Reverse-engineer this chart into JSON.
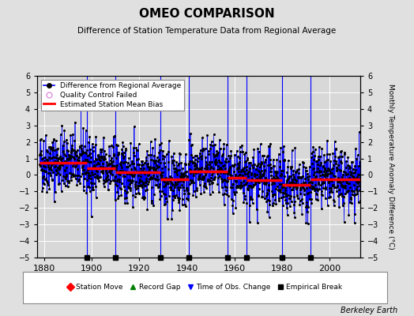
{
  "title": "OMEO COMPARISON",
  "subtitle": "Difference of Station Temperature Data from Regional Average",
  "ylabel": "Monthly Temperature Anomaly Difference (°C)",
  "xlim": [
    1877,
    2013
  ],
  "ylim": [
    -5,
    6
  ],
  "yticks": [
    -5,
    -4,
    -3,
    -2,
    -1,
    0,
    1,
    2,
    3,
    4,
    5,
    6
  ],
  "xticks": [
    1880,
    1900,
    1920,
    1940,
    1960,
    1980,
    2000
  ],
  "x_start": 1878,
  "n_months": 1632,
  "seed": 42,
  "bias_segments": [
    {
      "x_start": 1878,
      "x_end": 1898,
      "bias": 0.75
    },
    {
      "x_start": 1898,
      "x_end": 1910,
      "bias": 0.4
    },
    {
      "x_start": 1910,
      "x_end": 1929,
      "bias": 0.15
    },
    {
      "x_start": 1929,
      "x_end": 1941,
      "bias": -0.25
    },
    {
      "x_start": 1941,
      "x_end": 1957,
      "bias": 0.2
    },
    {
      "x_start": 1957,
      "x_end": 1965,
      "bias": -0.15
    },
    {
      "x_start": 1965,
      "x_end": 1980,
      "bias": -0.3
    },
    {
      "x_start": 1980,
      "x_end": 1992,
      "bias": -0.6
    },
    {
      "x_start": 1992,
      "x_end": 2014,
      "bias": -0.25
    }
  ],
  "break_years": [
    1898,
    1910,
    1929,
    1941,
    1957,
    1965,
    1980,
    1992
  ],
  "background_color": "#e0e0e0",
  "plot_bg_color": "#d8d8d8",
  "line_color": "blue",
  "marker_color": "black",
  "bias_color": "red",
  "break_line_color": "blue",
  "grid_color": "white",
  "legend_items": [
    "Difference from Regional Average",
    "Quality Control Failed",
    "Estimated Station Mean Bias"
  ],
  "bottom_legend": [
    "Station Move",
    "Record Gap",
    "Time of Obs. Change",
    "Empirical Break"
  ],
  "credit": "Berkeley Earth"
}
